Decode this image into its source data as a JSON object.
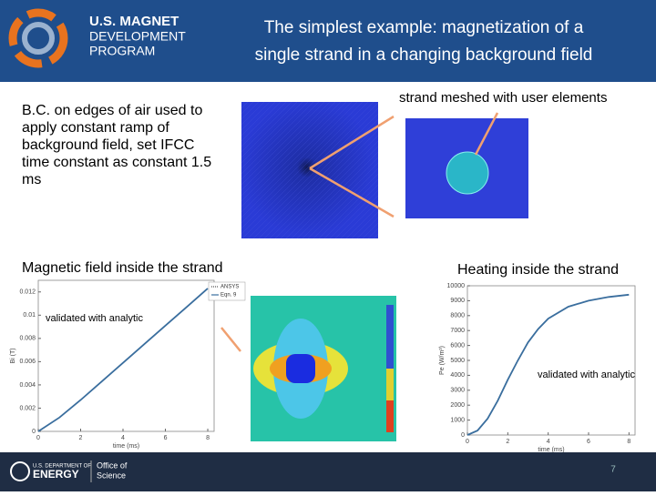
{
  "header": {
    "logo_lines": [
      "U.S. MAGNET",
      "DEVELOPMENT",
      "PROGRAM"
    ],
    "title_lines": [
      "The simplest example: magnetization of a",
      "single strand in a changing background field"
    ]
  },
  "text_bc": "B.C. on edges of air used to apply constant ramp of background field, set IFCC time constant as constant 1.5 ms",
  "text_mesh": "strand meshed with user elements",
  "text_field": "Magnetic field inside the strand",
  "text_heat": "Heating inside the strand",
  "plots": [
    {
      "xlabel": "time (ms)",
      "ylabel": "Bi (T)",
      "legend": [
        "ANSYS",
        "Eqn. 9"
      ],
      "annotation": "validated with analytic",
      "xlim": [
        0,
        8.3
      ],
      "ylim": [
        0,
        0.013
      ],
      "xticks": [
        0,
        2,
        4,
        6,
        8
      ],
      "yticks": [
        0,
        0.002,
        0.004,
        0.006,
        0.008,
        0.01,
        0.012
      ],
      "x": [
        0,
        1,
        2,
        3,
        4,
        5,
        6,
        7,
        8
      ],
      "values": [
        0,
        0.0012,
        0.0027,
        0.0043,
        0.0059,
        0.0075,
        0.0091,
        0.0107,
        0.0123
      ],
      "color": "#3a6e9e"
    },
    {
      "xlabel": "time (ms)",
      "ylabel": "Pe (W/m³)",
      "annotation": "validated with analytic",
      "xlim": [
        0,
        8.3
      ],
      "ylim": [
        0,
        10000
      ],
      "xticks": [
        0,
        2,
        4,
        6,
        8
      ],
      "yticks": [
        0,
        1000,
        2000,
        3000,
        4000,
        5000,
        6000,
        7000,
        8000,
        9000,
        10000
      ],
      "x": [
        0,
        0.5,
        1,
        1.5,
        2,
        2.5,
        3,
        3.5,
        4,
        5,
        6,
        7,
        8
      ],
      "values": [
        0,
        300,
        1100,
        2300,
        3700,
        5000,
        6200,
        7100,
        7800,
        8600,
        9000,
        9250,
        9400
      ],
      "color": "#3a6e9e"
    }
  ],
  "footer": {
    "doe_lines": [
      "U.S. DEPARTMENT OF",
      "ENERGY"
    ],
    "office_lines": [
      "Office of",
      "Science"
    ],
    "page": "7"
  }
}
